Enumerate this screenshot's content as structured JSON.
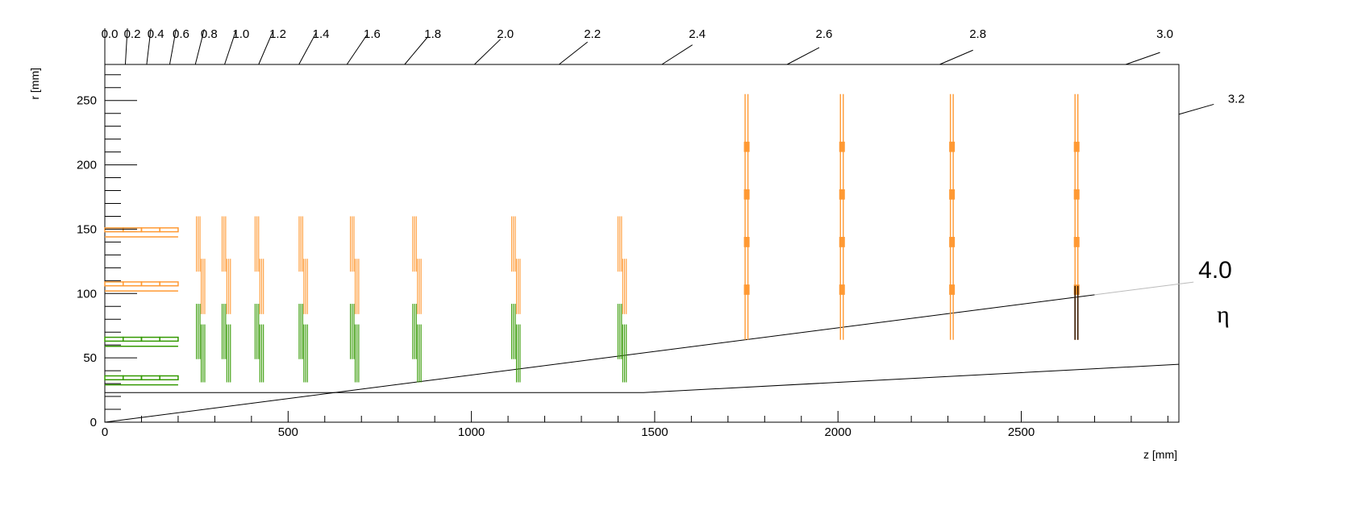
{
  "chart_data": {
    "type": "scatter",
    "title": "",
    "xlabel": "z [mm]",
    "ylabel": "r [mm]",
    "xlim": [
      0,
      2930
    ],
    "ylim": [
      0,
      278
    ],
    "x_major_ticks": [
      0,
      500,
      1000,
      1500,
      2000,
      2500
    ],
    "x_tick_labels": [
      "0",
      "500",
      "1000",
      "1500",
      "2000",
      "2500"
    ],
    "y_major_ticks": [
      0,
      50,
      100,
      150,
      200,
      250
    ],
    "y_tick_labels": [
      "0",
      "50",
      "100",
      "150",
      "200",
      "250"
    ],
    "eta_scale": {
      "symbol": "η",
      "top_labels": [
        "0.0",
        "0.2",
        "0.4",
        "0.6",
        "0.8",
        "1.0",
        "1.2",
        "1.4",
        "1.6",
        "1.8",
        "2.0",
        "2.2",
        "2.4",
        "2.6",
        "2.8",
        "3.0"
      ],
      "top_values": [
        0.0,
        0.2,
        0.4,
        0.6,
        0.8,
        1.0,
        1.2,
        1.4,
        1.6,
        1.8,
        2.0,
        2.2,
        2.4,
        2.6,
        2.8,
        3.0
      ],
      "right_labels": [
        "3.2"
      ],
      "right_values": [
        3.2
      ],
      "line_labels": [
        "4.0"
      ],
      "line_values": [
        4.0
      ]
    },
    "colors": {
      "outer": "#ff9933",
      "inner": "#339900",
      "highlight": "#3a1a00",
      "line": "#000000"
    },
    "barrel": {
      "z_range": [
        0,
        200
      ],
      "modules_per_layer": 4,
      "layers": [
        {
          "r": 148,
          "group": "outer"
        },
        {
          "r": 106,
          "group": "outer"
        },
        {
          "r": 63,
          "group": "inner"
        },
        {
          "r": 33,
          "group": "inner"
        }
      ]
    },
    "endcap_disks": {
      "z": [
        250,
        320,
        410,
        530,
        670,
        840,
        1110,
        1400
      ],
      "outer_r": [
        [
          84,
          127
        ],
        [
          117,
          160
        ]
      ],
      "inner_r": [
        [
          31,
          76
        ],
        [
          49,
          92
        ]
      ]
    },
    "forward_disks": {
      "z": [
        1750,
        2010,
        2310,
        2650
      ],
      "r_range": [
        64,
        255
      ],
      "module_r": [
        103,
        140,
        177,
        214
      ]
    },
    "reference_lines": [
      {
        "name": "beam-pipe",
        "points": [
          [
            0,
            23
          ],
          [
            1470,
            23
          ],
          [
            2930,
            45
          ]
        ]
      },
      {
        "name": "eta-4.0",
        "points": [
          [
            0,
            0
          ],
          [
            2700,
            99
          ]
        ]
      }
    ]
  }
}
